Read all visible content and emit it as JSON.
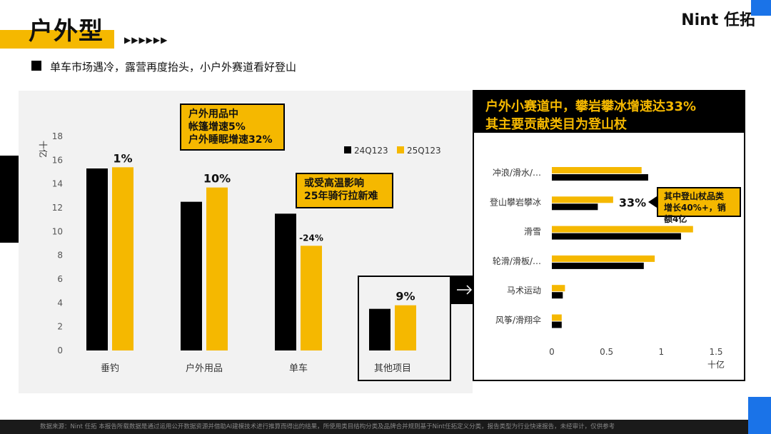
{
  "header": {
    "title": "户外型",
    "arrows": "▶▶▶▶▶▶",
    "brand": "Nint 任拓",
    "subtitle": "单车市场遇冷，露营再度抬头，小户外赛道看好登山"
  },
  "colors": {
    "accent": "#f5b800",
    "series_1": "#000000",
    "series_2": "#f5b800",
    "blue": "#1a73e8"
  },
  "icons": {
    "connector": "arrow-right-icon"
  },
  "callouts": {
    "outdoor": [
      "户外用品中",
      "帐篷增速5%",
      "户外睡眠增速32%"
    ],
    "bike": [
      "或受高温影响",
      "25年骑行拉新难"
    ],
    "climb": [
      "其中登山杖品类",
      "增长40%+，销额4亿"
    ]
  },
  "right_panel": {
    "title_line1": "户外小赛道中，攀岩攀冰增速达33%",
    "title_line2": "其主要贡献类目为登山杖"
  },
  "footer": "数据来源：Nint 任拓    本报告所载数据是通过运用公开数据资源并借助AI建模技术进行推算而得出的结果，所使用类目结构分类及品牌合并规则基于Nint任拓定义分类，报告类型为行业快速报告，未经审计，仅供参考",
  "chart_data": [
    {
      "type": "bar",
      "categories": [
        "垂钓",
        "户外用品",
        "单车",
        "其他项目"
      ],
      "series": [
        {
          "name": "24Q123",
          "values": [
            15.3,
            12.5,
            11.5,
            3.5
          ]
        },
        {
          "name": "25Q123",
          "values": [
            15.4,
            13.7,
            8.8,
            3.8
          ]
        }
      ],
      "data_labels": [
        "1%",
        "10%",
        "-24%",
        "9%"
      ],
      "ylabel": "十亿",
      "ylim": [
        0,
        18
      ],
      "yticks": [
        0,
        2,
        4,
        6,
        8,
        10,
        12,
        14,
        16,
        18
      ],
      "legend": "top-right",
      "grid": true
    },
    {
      "type": "bar",
      "orientation": "horizontal",
      "categories": [
        "冲浪/滑水/…",
        "登山攀岩攀冰",
        "滑雪",
        "轮滑/滑板/…",
        "马术运动",
        "风筝/滑翔伞"
      ],
      "series": [
        {
          "name": "24Q123",
          "values": [
            0.88,
            0.42,
            1.18,
            0.84,
            0.1,
            0.09
          ]
        },
        {
          "name": "25Q123",
          "values": [
            0.82,
            0.56,
            1.29,
            0.94,
            0.12,
            0.09
          ]
        }
      ],
      "data_labels": [
        "",
        "33%",
        "",
        "",
        "",
        ""
      ],
      "xlabel": "十亿",
      "xlim": [
        0,
        1.5
      ],
      "xticks": [
        "0",
        "0.5",
        "1",
        "1.5"
      ]
    }
  ]
}
